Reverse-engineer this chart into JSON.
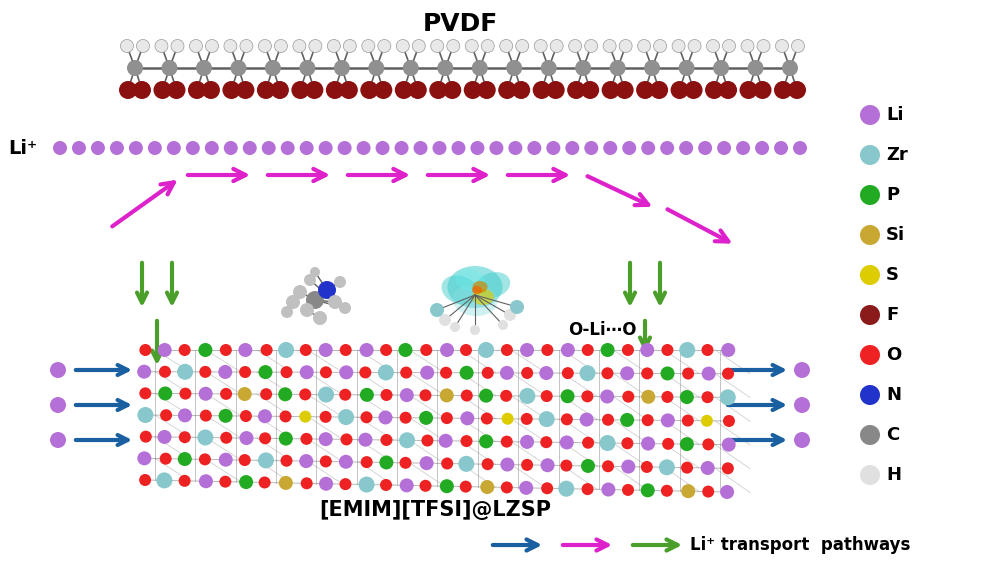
{
  "background_color": "#ffffff",
  "pvdf_label": "PVDF",
  "li_label": "Li⁺",
  "emim_label": "[EMIM][TFSI]@LZSP",
  "oli_label": "O-Li⋯O",
  "transport_label": "Li⁺ transport  pathways",
  "legend_items": [
    {
      "label": "Li",
      "color": "#b570d8"
    },
    {
      "label": "Zr",
      "color": "#88c8cc"
    },
    {
      "label": "P",
      "color": "#22aa22"
    },
    {
      "label": "Si",
      "color": "#c8a832"
    },
    {
      "label": "S",
      "color": "#ddcc00"
    },
    {
      "label": "F",
      "color": "#8b1a1a"
    },
    {
      "label": "O",
      "color": "#ee2222"
    },
    {
      "label": "N",
      "color": "#2233cc"
    },
    {
      "label": "C",
      "color": "#888888"
    },
    {
      "label": "H",
      "color": "#e0e0e0"
    }
  ],
  "arrow_blue": "#1a5fa0",
  "arrow_magenta": "#dd22cc",
  "arrow_green": "#4a9e2a",
  "figsize": [
    9.98,
    5.71
  ],
  "dpi": 100
}
